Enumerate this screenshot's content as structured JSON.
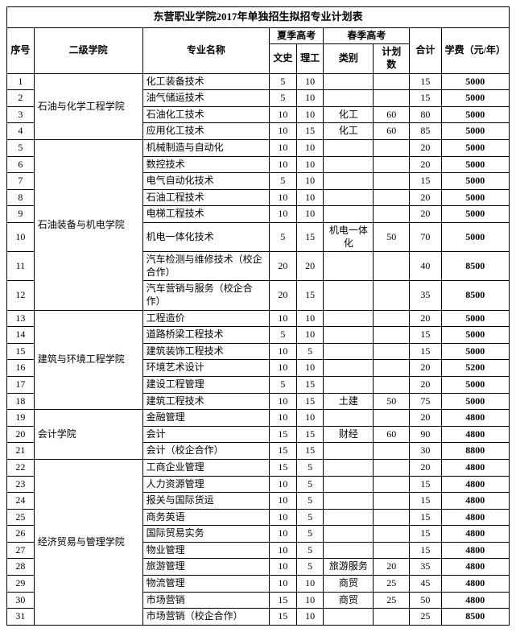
{
  "title": "东营职业学院2017年单独招生拟招专业计划表",
  "headers": {
    "seq": "序号",
    "college": "二级学院",
    "major": "专业名称",
    "summer": "夏季高考",
    "spring": "春季高考",
    "ws": "文史",
    "lg": "理工",
    "cat": "类别",
    "num": "计划数",
    "total": "合计",
    "fee": "学费（元/年）"
  },
  "groups": [
    {
      "college": "石油与化学工程学院",
      "rows": [
        {
          "seq": 1,
          "major": "化工装备技术",
          "ws": 5,
          "lg": 10,
          "cat": "",
          "num": "",
          "total": 15,
          "fee": 5000
        },
        {
          "seq": 2,
          "major": "油气储运技术",
          "ws": 5,
          "lg": 10,
          "cat": "",
          "num": "",
          "total": 15,
          "fee": 5000
        },
        {
          "seq": 3,
          "major": "石油化工技术",
          "ws": 10,
          "lg": 10,
          "cat": "化工",
          "num": 60,
          "total": 80,
          "fee": 5000
        },
        {
          "seq": 4,
          "major": "应用化工技术",
          "ws": 10,
          "lg": 15,
          "cat": "化工",
          "num": 60,
          "total": 85,
          "fee": 5000
        }
      ]
    },
    {
      "college": "石油装备与机电学院",
      "rows": [
        {
          "seq": 5,
          "major": "机械制造与自动化",
          "ws": 10,
          "lg": 10,
          "cat": "",
          "num": "",
          "total": 20,
          "fee": 5000
        },
        {
          "seq": 6,
          "major": "数控技术",
          "ws": 10,
          "lg": 10,
          "cat": "",
          "num": "",
          "total": 20,
          "fee": 5000
        },
        {
          "seq": 7,
          "major": "电气自动化技术",
          "ws": 5,
          "lg": 10,
          "cat": "",
          "num": "",
          "total": 15,
          "fee": 5000
        },
        {
          "seq": 8,
          "major": "石油工程技术",
          "ws": 10,
          "lg": 10,
          "cat": "",
          "num": "",
          "total": 20,
          "fee": 5000
        },
        {
          "seq": 9,
          "major": "电梯工程技术",
          "ws": 10,
          "lg": 10,
          "cat": "",
          "num": "",
          "total": 20,
          "fee": 5000
        },
        {
          "seq": 10,
          "major": "机电一体化技术",
          "ws": 5,
          "lg": 15,
          "cat": "机电一体化",
          "num": 50,
          "total": 70,
          "fee": 5000
        },
        {
          "seq": 11,
          "major": "汽车检测与维修技术（校企合作）",
          "ws": 20,
          "lg": 20,
          "cat": "",
          "num": "",
          "total": 40,
          "fee": 8500
        },
        {
          "seq": 12,
          "major": "汽车营销与服务（校企合作）",
          "ws": 20,
          "lg": 15,
          "cat": "",
          "num": "",
          "total": 35,
          "fee": 8500
        }
      ]
    },
    {
      "college": "建筑与环境工程学院",
      "rows": [
        {
          "seq": 13,
          "major": "工程造价",
          "ws": 10,
          "lg": 10,
          "cat": "",
          "num": "",
          "total": 20,
          "fee": 5000
        },
        {
          "seq": 14,
          "major": "道路桥梁工程技术",
          "ws": 5,
          "lg": 10,
          "cat": "",
          "num": "",
          "total": 15,
          "fee": 5000
        },
        {
          "seq": 15,
          "major": "建筑装饰工程技术",
          "ws": 10,
          "lg": 5,
          "cat": "",
          "num": "",
          "total": 15,
          "fee": 5000
        },
        {
          "seq": 16,
          "major": "环境艺术设计",
          "ws": 10,
          "lg": 10,
          "cat": "",
          "num": "",
          "total": 20,
          "fee": 5200
        },
        {
          "seq": 17,
          "major": "建设工程管理",
          "ws": 5,
          "lg": 15,
          "cat": "",
          "num": "",
          "total": 20,
          "fee": 5000
        },
        {
          "seq": 18,
          "major": "建筑工程技术",
          "ws": 10,
          "lg": 15,
          "cat": "土建",
          "num": 50,
          "total": 75,
          "fee": 5000
        }
      ]
    },
    {
      "college": "会计学院",
      "rows": [
        {
          "seq": 19,
          "major": "金融管理",
          "ws": 10,
          "lg": 10,
          "cat": "",
          "num": "",
          "total": 20,
          "fee": 4800
        },
        {
          "seq": 20,
          "major": "会计",
          "ws": 15,
          "lg": 15,
          "cat": "财经",
          "num": 60,
          "total": 90,
          "fee": 4800
        },
        {
          "seq": 21,
          "major": "会计（校企合作）",
          "ws": 15,
          "lg": 15,
          "cat": "",
          "num": "",
          "total": 30,
          "fee": 8800
        }
      ]
    },
    {
      "college": "经济贸易与管理学院",
      "rows": [
        {
          "seq": 22,
          "major": "工商企业管理",
          "ws": 15,
          "lg": 5,
          "cat": "",
          "num": "",
          "total": 20,
          "fee": 4800
        },
        {
          "seq": 23,
          "major": "人力资源管理",
          "ws": 10,
          "lg": 5,
          "cat": "",
          "num": "",
          "total": 15,
          "fee": 4800
        },
        {
          "seq": 24,
          "major": "报关与国际货运",
          "ws": 10,
          "lg": 5,
          "cat": "",
          "num": "",
          "total": 15,
          "fee": 4800
        },
        {
          "seq": 25,
          "major": "商务英语",
          "ws": 10,
          "lg": 5,
          "cat": "",
          "num": "",
          "total": 15,
          "fee": 4800
        },
        {
          "seq": 26,
          "major": "国际贸易实务",
          "ws": 10,
          "lg": 5,
          "cat": "",
          "num": "",
          "total": 15,
          "fee": 4800
        },
        {
          "seq": 27,
          "major": "物业管理",
          "ws": 10,
          "lg": 5,
          "cat": "",
          "num": "",
          "total": 15,
          "fee": 4800
        },
        {
          "seq": 28,
          "major": "旅游管理",
          "ws": 10,
          "lg": 5,
          "cat": "旅游服务",
          "num": 20,
          "total": 35,
          "fee": 4800
        },
        {
          "seq": 29,
          "major": "物流管理",
          "ws": 10,
          "lg": 10,
          "cat": "商贸",
          "num": 25,
          "total": 45,
          "fee": 4800
        },
        {
          "seq": 30,
          "major": "市场营销",
          "ws": 15,
          "lg": 10,
          "cat": "商贸",
          "num": 25,
          "total": 50,
          "fee": 4800
        },
        {
          "seq": 31,
          "major": "市场营销（校企合作）",
          "ws": 15,
          "lg": 10,
          "cat": "",
          "num": "",
          "total": 25,
          "fee": 8500
        }
      ]
    }
  ]
}
